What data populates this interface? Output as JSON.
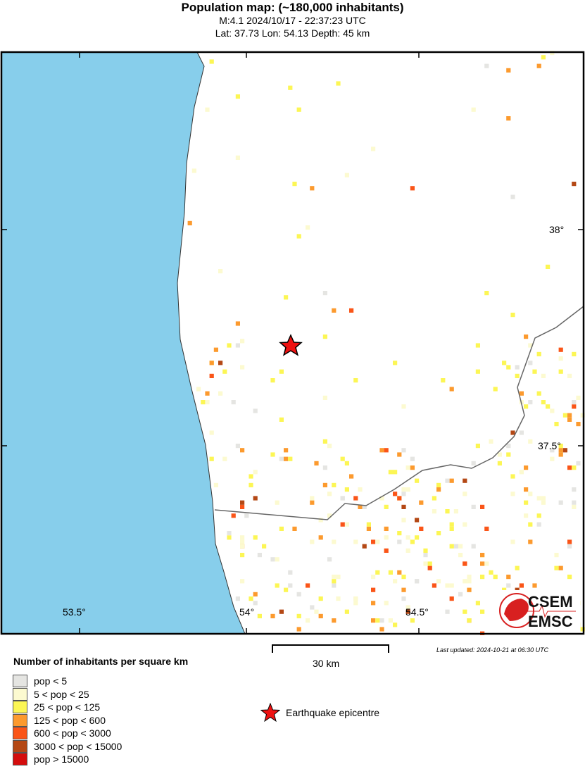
{
  "header": {
    "title": "Population map: (~180,000 inhabitants)",
    "event": "M:4.1 2024/10/17 - 22:37:23 UTC",
    "location": "Lat: 37.73 Lon: 54.13 Depth: 45 km"
  },
  "map": {
    "lon_ticks": [
      "53.5°",
      "54°",
      "54.5°"
    ],
    "lat_ticks": [
      "38°",
      "37.5°"
    ],
    "epicentre": {
      "lat": 37.73,
      "lon": 54.13
    },
    "colors": {
      "sea": "#87ceeb",
      "land": "#ffffff",
      "border": "#666666",
      "epicentre": "#ee1111"
    }
  },
  "scale_bar": {
    "label": "30 km"
  },
  "last_updated": "Last updated: 2024-10-21 at 06:30 UTC",
  "legend": {
    "title": "Number of inhabitants per square km",
    "items": [
      {
        "label": "pop < 5",
        "color": "#e5e5e2"
      },
      {
        "label": "5 < pop < 25",
        "color": "#fcfad0"
      },
      {
        "label": "25 < pop < 125",
        "color": "#fcf655"
      },
      {
        "label": "125 < pop < 600",
        "color": "#fc9a2e"
      },
      {
        "label": "600 < pop < 3000",
        "color": "#fa5518"
      },
      {
        "label": "3000 < pop < 15000",
        "color": "#b44815"
      },
      {
        "label": "pop > 15000",
        "color": "#d40d0d"
      }
    ],
    "epicentre_label": "Earthquake epicentre"
  },
  "logo": {
    "text_top": "CSEM",
    "text_bottom": "EMSC"
  }
}
